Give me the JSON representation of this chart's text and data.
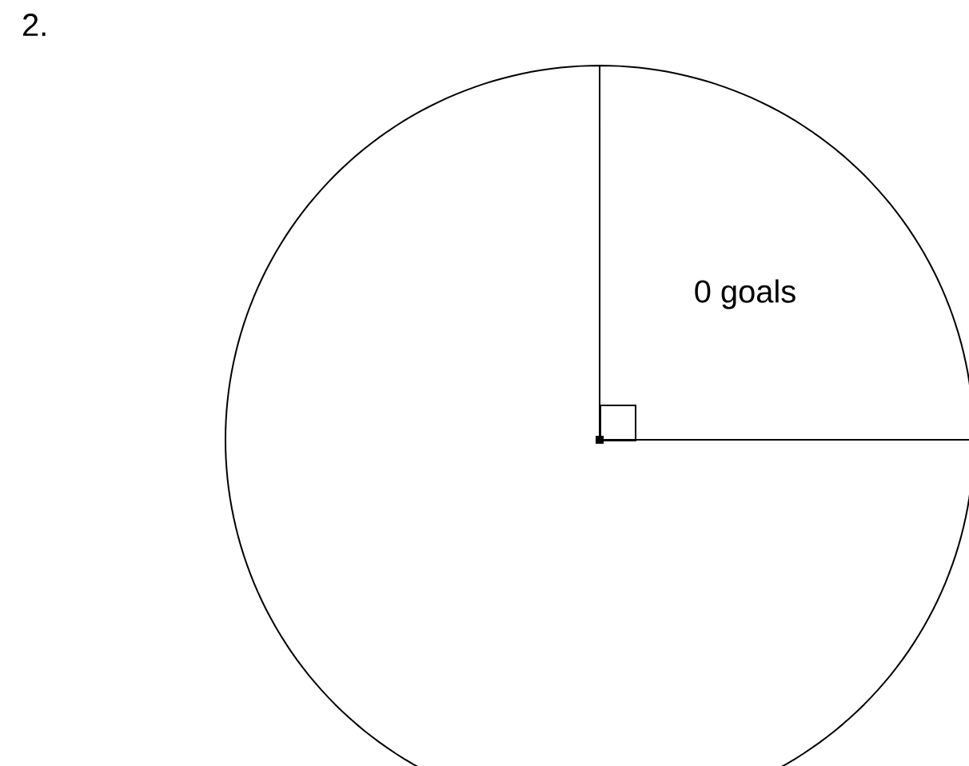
{
  "chart_data": {
    "type": "pie",
    "title": "2.",
    "categories": [
      "0 goals",
      null
    ],
    "values": [
      25,
      75
    ],
    "colors": [
      "#ffffff",
      "#ffffff"
    ]
  }
}
